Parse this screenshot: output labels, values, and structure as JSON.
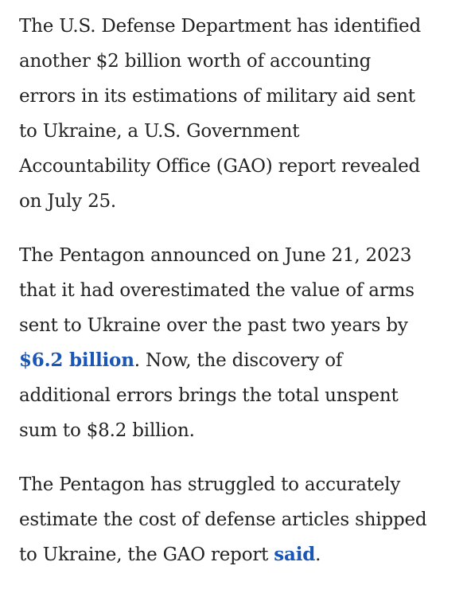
{
  "article": {
    "p1": {
      "lines": [
        "The U.S. Defense Department has identified",
        "another $2 billion worth of accounting",
        "errors in its estimations of military aid sent",
        "to Ukraine, a U.S. Government",
        "Accountability Office (GAO) report revealed",
        "on July 25."
      ]
    },
    "p2": {
      "line1": "The Pentagon announced on June 21, 2023",
      "line2": "that it had overestimated the value of arms",
      "line3": "sent to Ukraine over the past two years by",
      "line4_link": "$6.2 billion",
      "line4_rest": ". Now, the discovery of",
      "line5": "additional errors brings the total  unspent",
      "line6": "sum to $8.2 billion."
    },
    "p3": {
      "line1": "The Pentagon has struggled to accurately",
      "line2": "estimate the cost of defense articles shipped",
      "line3_pre": "to Ukraine, the GAO report ",
      "line3_link": "said",
      "line3_post": "."
    }
  },
  "colors": {
    "text": "#222222",
    "link": "#1a56b6",
    "background": "#ffffff"
  }
}
